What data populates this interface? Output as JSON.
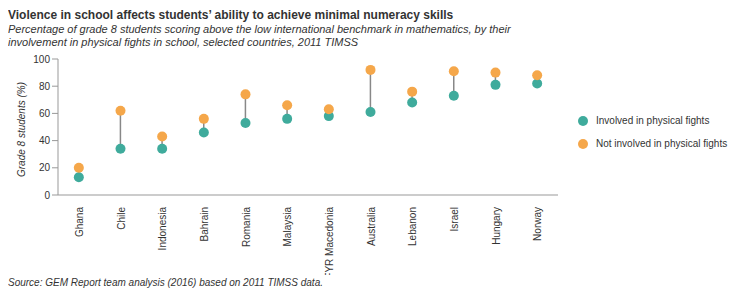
{
  "chart_data": {
    "type": "scatter",
    "title": "Violence in school affects students’ ability to achieve minimal numeracy skills",
    "subtitle": "Percentage of grade 8 students scoring above the low international benchmark in mathematics, by their involvement in physical fights in school, selected countries, 2011 TIMSS",
    "y_label": "Grade 8 students (%)",
    "source": "Source: GEM Report team analysis (2016) based on 2011 TIMSS data.",
    "categories": [
      "Ghana",
      "Chile",
      "Indonesia",
      "Bahrain",
      "Romania",
      "Malaysia",
      "TFYR Macedonia",
      "Australia",
      "Lebanon",
      "Israel",
      "Hungary",
      "Norway"
    ],
    "series": [
      {
        "name": "Involved in physical fights",
        "color": "#3fab9c",
        "marker": "circle",
        "values": [
          13,
          34,
          34,
          46,
          53,
          56,
          58,
          61,
          68,
          73,
          81,
          82
        ]
      },
      {
        "name": "Not involved in physical fights",
        "color": "#f5a74a",
        "marker": "circle",
        "values": [
          20,
          62,
          43,
          56,
          74,
          66,
          63,
          92,
          76,
          91,
          90,
          88
        ]
      }
    ],
    "ylim": [
      0,
      100
    ],
    "yticks": [
      0,
      20,
      40,
      60,
      80,
      100
    ],
    "grid": false,
    "legend": "right"
  }
}
